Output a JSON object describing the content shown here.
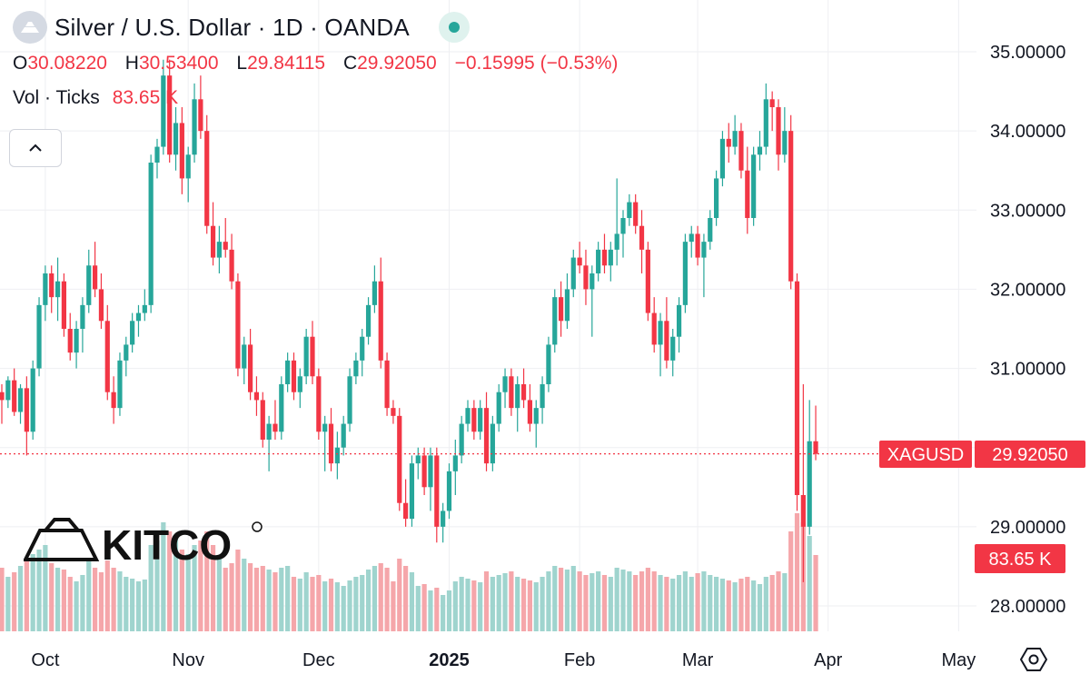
{
  "header": {
    "title": "Silver / U.S. Dollar · 1D · OANDA",
    "ohlc": {
      "o_label": "O",
      "o_value": "30.08220",
      "h_label": "H",
      "h_value": "30.53400",
      "l_label": "L",
      "l_value": "29.84115",
      "c_label": "C",
      "c_value": "29.92050",
      "change": "−0.15995 (−0.53%)"
    },
    "volume": {
      "label": "Vol · Ticks",
      "value": "83.65 K"
    }
  },
  "logo_text": "KITCO",
  "price_tag": {
    "symbol": "XAGUSD",
    "value": "29.92050"
  },
  "volume_tag": {
    "value": "83.65 K"
  },
  "icons": {
    "symbol": "silver-bars-icon",
    "status": "market-status-dot-icon",
    "collapse": "chevron-up-icon",
    "settings": "settings-hexagon-icon"
  },
  "colors": {
    "up": "#26a69a",
    "down": "#f23645",
    "vol_up": "#9fd4ce",
    "vol_down": "#f5a6aa",
    "grid": "#eeeff2",
    "last_line": "#f23645"
  },
  "chart_data": {
    "type": "candlestick",
    "symbol": "XAGUSD",
    "timeframe": "1D",
    "y_range": [
      27.7,
      35.35
    ],
    "y_ticks": [
      "35.00000",
      "34.00000",
      "33.00000",
      "32.00000",
      "31.00000",
      "29.00000",
      "28.00000"
    ],
    "x_ticks": [
      {
        "label": "Oct",
        "bold": false,
        "index": 7
      },
      {
        "label": "Nov",
        "bold": false,
        "index": 30
      },
      {
        "label": "Dec",
        "bold": false,
        "index": 51
      },
      {
        "label": "2025",
        "bold": true,
        "index": 72
      },
      {
        "label": "Feb",
        "bold": false,
        "index": 93
      },
      {
        "label": "Mar",
        "bold": false,
        "index": 112
      },
      {
        "label": "Apr",
        "bold": false,
        "index": 133
      },
      {
        "label": "May",
        "bold": false,
        "index": 154
      }
    ],
    "volume_max": 130,
    "last_close": 29.9205,
    "candles": [
      [
        30.7,
        30.8,
        30.3,
        30.6,
        70
      ],
      [
        30.6,
        30.9,
        30.5,
        30.85,
        60
      ],
      [
        30.85,
        31.0,
        30.4,
        30.45,
        65
      ],
      [
        30.45,
        30.8,
        30.3,
        30.75,
        72
      ],
      [
        30.75,
        30.9,
        29.9,
        30.2,
        80
      ],
      [
        30.2,
        31.1,
        30.1,
        31.0,
        85
      ],
      [
        31.0,
        31.9,
        30.9,
        31.8,
        90
      ],
      [
        31.8,
        32.3,
        31.6,
        32.2,
        95
      ],
      [
        32.2,
        32.3,
        31.7,
        31.9,
        75
      ],
      [
        31.9,
        32.4,
        31.6,
        32.1,
        70
      ],
      [
        32.1,
        32.2,
        31.4,
        31.5,
        68
      ],
      [
        31.5,
        31.7,
        31.1,
        31.2,
        60
      ],
      [
        31.2,
        31.6,
        31.0,
        31.5,
        55
      ],
      [
        31.5,
        31.9,
        31.2,
        31.8,
        62
      ],
      [
        31.8,
        32.5,
        31.7,
        32.3,
        80
      ],
      [
        32.3,
        32.6,
        31.9,
        32.0,
        70
      ],
      [
        32.0,
        32.2,
        31.5,
        31.6,
        65
      ],
      [
        31.6,
        31.8,
        30.6,
        30.7,
        78
      ],
      [
        30.7,
        30.9,
        30.3,
        30.5,
        70
      ],
      [
        30.5,
        31.2,
        30.4,
        31.1,
        66
      ],
      [
        31.1,
        31.4,
        30.9,
        31.3,
        60
      ],
      [
        31.3,
        31.7,
        31.2,
        31.6,
        58
      ],
      [
        31.6,
        31.8,
        31.4,
        31.7,
        55
      ],
      [
        31.7,
        32.0,
        31.6,
        31.8,
        57
      ],
      [
        31.8,
        33.7,
        31.7,
        33.6,
        95
      ],
      [
        33.6,
        33.9,
        33.4,
        33.8,
        100
      ],
      [
        33.8,
        34.9,
        33.7,
        34.7,
        120
      ],
      [
        34.7,
        34.9,
        33.6,
        33.7,
        110
      ],
      [
        33.7,
        34.3,
        33.5,
        34.1,
        105
      ],
      [
        34.1,
        34.3,
        33.2,
        33.4,
        90
      ],
      [
        33.4,
        33.8,
        33.1,
        33.7,
        85
      ],
      [
        33.7,
        34.6,
        33.6,
        34.4,
        95
      ],
      [
        34.4,
        34.7,
        33.9,
        34.0,
        100
      ],
      [
        34.0,
        34.2,
        32.7,
        32.8,
        110
      ],
      [
        32.8,
        33.1,
        32.3,
        32.4,
        95
      ],
      [
        32.4,
        32.8,
        32.2,
        32.6,
        80
      ],
      [
        32.6,
        32.9,
        32.4,
        32.5,
        70
      ],
      [
        32.5,
        32.7,
        32.0,
        32.1,
        75
      ],
      [
        32.1,
        32.2,
        30.9,
        31.0,
        90
      ],
      [
        31.0,
        31.4,
        30.8,
        31.3,
        80
      ],
      [
        31.3,
        31.5,
        30.6,
        30.7,
        75
      ],
      [
        30.7,
        30.9,
        30.4,
        30.6,
        70
      ],
      [
        30.6,
        30.7,
        30.0,
        30.1,
        72
      ],
      [
        30.1,
        30.4,
        29.7,
        30.3,
        68
      ],
      [
        30.3,
        30.6,
        30.1,
        30.2,
        65
      ],
      [
        30.2,
        30.9,
        30.1,
        30.8,
        70
      ],
      [
        30.8,
        31.2,
        30.7,
        31.1,
        72
      ],
      [
        31.1,
        31.2,
        30.6,
        30.7,
        60
      ],
      [
        30.7,
        31.0,
        30.5,
        30.9,
        58
      ],
      [
        30.9,
        31.5,
        30.8,
        31.4,
        65
      ],
      [
        31.4,
        31.6,
        30.8,
        30.9,
        60
      ],
      [
        30.9,
        31.0,
        30.1,
        30.2,
        62
      ],
      [
        30.2,
        30.4,
        29.7,
        30.3,
        55
      ],
      [
        30.3,
        30.5,
        29.7,
        29.8,
        58
      ],
      [
        29.8,
        30.2,
        29.6,
        30.0,
        54
      ],
      [
        30.0,
        30.4,
        29.9,
        30.3,
        50
      ],
      [
        30.3,
        31.0,
        30.2,
        30.9,
        56
      ],
      [
        30.9,
        31.2,
        30.8,
        31.1,
        60
      ],
      [
        31.1,
        31.5,
        30.9,
        31.4,
        62
      ],
      [
        31.4,
        31.9,
        31.3,
        31.8,
        68
      ],
      [
        31.8,
        32.3,
        31.7,
        32.1,
        72
      ],
      [
        32.1,
        32.4,
        31.0,
        31.1,
        75
      ],
      [
        31.1,
        31.2,
        30.4,
        30.5,
        70
      ],
      [
        30.5,
        30.6,
        30.3,
        30.4,
        55
      ],
      [
        30.4,
        30.5,
        29.2,
        29.3,
        80
      ],
      [
        29.3,
        29.6,
        29.0,
        29.1,
        72
      ],
      [
        29.1,
        29.9,
        29.0,
        29.8,
        65
      ],
      [
        29.8,
        30.0,
        29.6,
        29.9,
        50
      ],
      [
        29.9,
        30.0,
        29.4,
        29.5,
        52
      ],
      [
        29.5,
        30.0,
        29.2,
        29.9,
        45
      ],
      [
        29.9,
        30.0,
        28.8,
        29.0,
        48
      ],
      [
        29.0,
        29.3,
        28.8,
        29.2,
        40
      ],
      [
        29.2,
        29.8,
        29.1,
        29.7,
        45
      ],
      [
        29.7,
        30.1,
        29.4,
        29.9,
        55
      ],
      [
        29.9,
        30.4,
        29.8,
        30.3,
        60
      ],
      [
        30.3,
        30.6,
        30.2,
        30.5,
        58
      ],
      [
        30.5,
        30.6,
        30.1,
        30.2,
        56
      ],
      [
        30.2,
        30.6,
        30.1,
        30.5,
        54
      ],
      [
        30.5,
        30.7,
        29.7,
        29.8,
        66
      ],
      [
        29.8,
        30.4,
        29.7,
        30.3,
        60
      ],
      [
        30.3,
        30.8,
        30.2,
        30.7,
        62
      ],
      [
        30.7,
        31.0,
        30.5,
        30.9,
        64
      ],
      [
        30.9,
        31.0,
        30.4,
        30.5,
        66
      ],
      [
        30.5,
        30.9,
        30.2,
        30.8,
        60
      ],
      [
        30.8,
        31.0,
        30.5,
        30.6,
        58
      ],
      [
        30.6,
        30.8,
        30.2,
        30.3,
        56
      ],
      [
        30.3,
        30.6,
        30.0,
        30.5,
        54
      ],
      [
        30.5,
        30.9,
        30.3,
        30.8,
        60
      ],
      [
        30.8,
        31.4,
        30.7,
        31.3,
        66
      ],
      [
        31.3,
        32.0,
        31.2,
        31.9,
        72
      ],
      [
        31.9,
        32.1,
        31.4,
        31.6,
        70
      ],
      [
        31.6,
        32.2,
        31.5,
        32.0,
        68
      ],
      [
        32.0,
        32.5,
        31.9,
        32.4,
        72
      ],
      [
        32.4,
        32.6,
        32.2,
        32.3,
        66
      ],
      [
        32.3,
        32.5,
        31.8,
        32.0,
        62
      ],
      [
        32.0,
        32.3,
        31.4,
        32.2,
        64
      ],
      [
        32.2,
        32.6,
        32.1,
        32.5,
        66
      ],
      [
        32.5,
        32.7,
        32.2,
        32.3,
        62
      ],
      [
        32.3,
        32.6,
        32.1,
        32.5,
        60
      ],
      [
        32.5,
        33.4,
        32.3,
        32.7,
        70
      ],
      [
        32.7,
        33.0,
        32.4,
        32.9,
        68
      ],
      [
        32.9,
        33.2,
        32.8,
        33.1,
        66
      ],
      [
        33.1,
        33.2,
        32.7,
        32.8,
        62
      ],
      [
        32.8,
        33.0,
        32.2,
        32.5,
        66
      ],
      [
        32.5,
        32.6,
        31.6,
        31.7,
        70
      ],
      [
        31.7,
        31.9,
        31.2,
        31.3,
        66
      ],
      [
        31.3,
        31.7,
        30.9,
        31.6,
        62
      ],
      [
        31.6,
        31.9,
        31.0,
        31.1,
        60
      ],
      [
        31.1,
        31.5,
        30.9,
        31.4,
        58
      ],
      [
        31.4,
        31.9,
        31.2,
        31.8,
        62
      ],
      [
        31.8,
        32.7,
        31.7,
        32.6,
        66
      ],
      [
        32.6,
        32.8,
        32.4,
        32.7,
        60
      ],
      [
        32.7,
        32.8,
        32.3,
        32.4,
        64
      ],
      [
        32.4,
        32.7,
        31.9,
        32.6,
        66
      ],
      [
        32.6,
        33.0,
        32.5,
        32.9,
        62
      ],
      [
        32.9,
        33.5,
        32.8,
        33.4,
        60
      ],
      [
        33.4,
        34.0,
        33.3,
        33.9,
        58
      ],
      [
        33.9,
        34.1,
        33.6,
        33.8,
        56
      ],
      [
        33.8,
        34.2,
        33.7,
        34.0,
        54
      ],
      [
        34.0,
        34.1,
        33.4,
        33.5,
        58
      ],
      [
        33.5,
        33.8,
        32.7,
        32.9,
        60
      ],
      [
        32.9,
        33.8,
        32.8,
        33.7,
        56
      ],
      [
        33.7,
        34.0,
        33.5,
        33.8,
        52
      ],
      [
        33.8,
        34.6,
        33.7,
        34.4,
        60
      ],
      [
        34.4,
        34.5,
        34.0,
        34.3,
        62
      ],
      [
        34.3,
        34.4,
        33.5,
        33.7,
        66
      ],
      [
        33.7,
        34.3,
        33.6,
        34.0,
        64
      ],
      [
        34.0,
        34.2,
        32.0,
        32.1,
        110
      ],
      [
        32.1,
        32.2,
        29.2,
        29.4,
        130
      ],
      [
        29.4,
        30.8,
        28.3,
        29.0,
        120
      ],
      [
        29.0,
        30.6,
        28.9,
        30.08,
        105
      ],
      [
        30.08,
        30.53,
        29.84,
        29.92,
        84
      ]
    ]
  }
}
